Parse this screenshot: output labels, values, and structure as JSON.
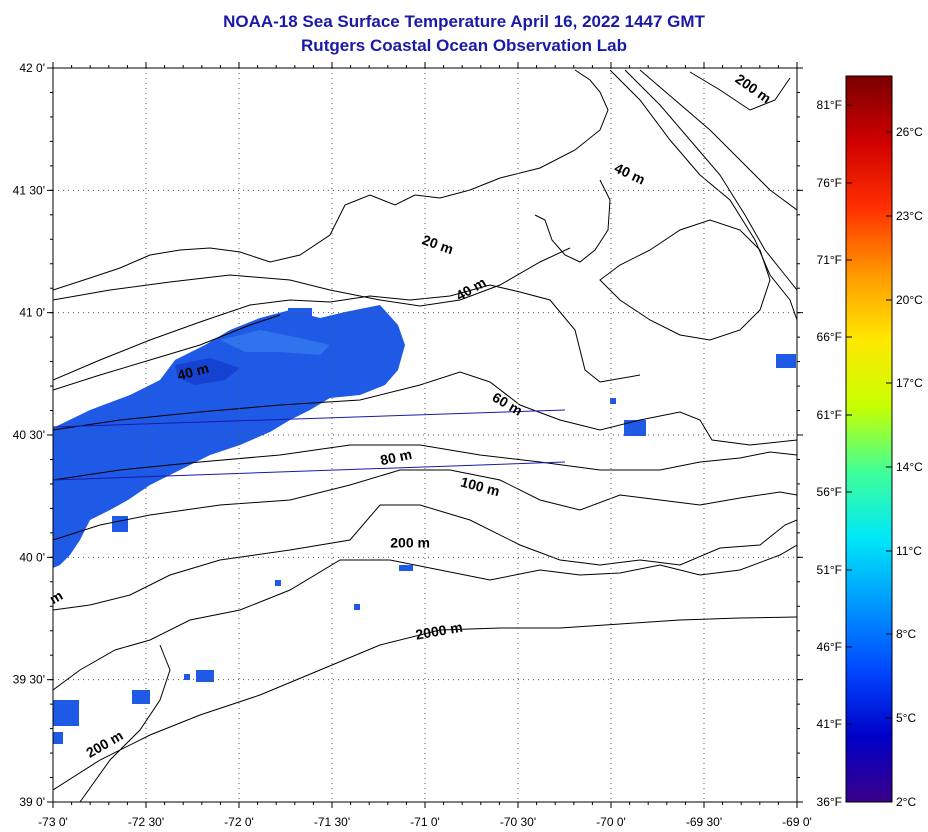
{
  "title": "NOAA-18 Sea Surface Temperature April 16, 2022 1447 GMT",
  "subtitle": "Rutgers Coastal Ocean Observation Lab",
  "colors": {
    "title": "#1a1aa8",
    "contour": "#000000",
    "track": "#1a1aa8",
    "sst_blue": "#1f5ae6",
    "sst_dark_blue": "#1238c8"
  },
  "map": {
    "lon_range": [
      -73.0,
      -69.0
    ],
    "lat_range": [
      39.0,
      42.0
    ],
    "lon_ticks": [
      "-73 0'",
      "-72 30'",
      "-72 0'",
      "-71 30'",
      "-71 0'",
      "-70 30'",
      "-70 0'",
      "-69 30'",
      "-69 0'"
    ],
    "lat_ticks": [
      "42 0'",
      "41 30'",
      "41 0'",
      "40 30'",
      "40 0'",
      "39 30'",
      "39 0'"
    ],
    "grid": true
  },
  "contour_labels": [
    {
      "text": "20 m",
      "lon": -70.94,
      "lat": 41.26,
      "angle": 20
    },
    {
      "text": "40 m",
      "lon": -70.74,
      "lat": 41.08,
      "angle": -30
    },
    {
      "text": "40 m",
      "lon": -72.24,
      "lat": 40.74,
      "angle": -15
    },
    {
      "text": "40 m",
      "lon": -69.91,
      "lat": 41.55,
      "angle": 25
    },
    {
      "text": "200 m",
      "lon": -69.25,
      "lat": 41.9,
      "angle": 35
    },
    {
      "text": "60 m",
      "lon": -70.57,
      "lat": 40.61,
      "angle": 30
    },
    {
      "text": "80 m",
      "lon": -71.15,
      "lat": 40.39,
      "angle": -12
    },
    {
      "text": "100 m",
      "lon": -70.71,
      "lat": 40.27,
      "angle": 15
    },
    {
      "text": "200 m",
      "lon": -71.08,
      "lat": 40.04,
      "angle": 0
    },
    {
      "text": "2000 m",
      "lon": -70.92,
      "lat": 39.68,
      "angle": -10
    },
    {
      "text": "200 m",
      "lon": -72.71,
      "lat": 39.22,
      "angle": -30
    },
    {
      "text": "m",
      "lon": -72.97,
      "lat": 39.82,
      "angle": -30
    }
  ],
  "colorbar": {
    "stops": [
      "#3a0088",
      "#0000c8",
      "#0048ff",
      "#0098ff",
      "#00e8f8",
      "#40ff98",
      "#c8ff00",
      "#ffe800",
      "#ff9800",
      "#ff3000",
      "#d00000",
      "#7a0000"
    ],
    "celsius_labels": [
      "26°C",
      "23°C",
      "20°C",
      "17°C",
      "14°C",
      "11°C",
      "8°C",
      "5°C",
      "2°C"
    ],
    "fahrenheit_labels": [
      "81°F",
      "76°F",
      "71°F",
      "66°F",
      "61°F",
      "56°F",
      "51°F",
      "46°F",
      "41°F",
      "36°F"
    ]
  }
}
